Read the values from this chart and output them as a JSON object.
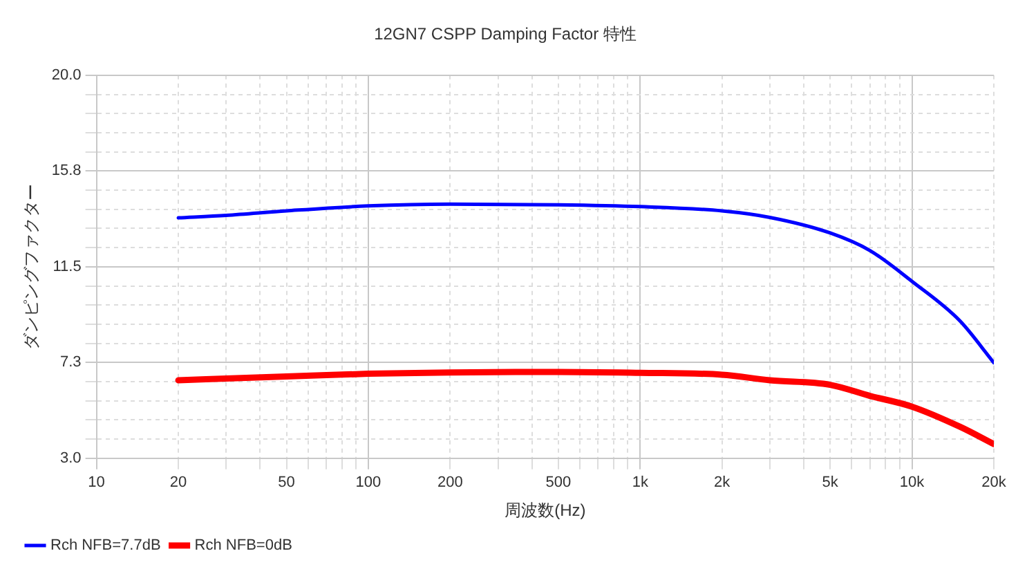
{
  "chart_data": {
    "type": "line",
    "title": "12GN7 CSPP Damping Factor 特性",
    "xlabel": "周波数(Hz)",
    "ylabel": "ダンピングファクター",
    "log": "x",
    "grid": true,
    "legend": "bottom left",
    "marker": "none",
    "line_style": "solid",
    "xlim": [
      10,
      20000
    ],
    "xticks": [
      10,
      20,
      {
        "value": 30,
        "label": null
      },
      {
        "value": 40,
        "label": null
      },
      50,
      {
        "value": 60,
        "label": null
      },
      {
        "value": 70,
        "label": null
      },
      {
        "value": 80,
        "label": null
      },
      {
        "value": 90,
        "label": null
      },
      100,
      200,
      {
        "value": 300,
        "label": null
      },
      {
        "value": 400,
        "label": null
      },
      500,
      {
        "value": 600,
        "label": null
      },
      {
        "value": 700,
        "label": null
      },
      {
        "value": 800,
        "label": null
      },
      {
        "value": 900,
        "label": null
      },
      {
        "value": 1000,
        "label": "1k"
      },
      {
        "value": 2000,
        "label": "2k"
      },
      {
        "value": 3000,
        "label": null
      },
      {
        "value": 4000,
        "label": null
      },
      {
        "value": 5000,
        "label": "5k"
      },
      {
        "value": 6000,
        "label": null
      },
      {
        "value": 7000,
        "label": null
      },
      {
        "value": 8000,
        "label": null
      },
      {
        "value": 9000,
        "label": null
      },
      {
        "value": 10000,
        "label": "10k"
      },
      {
        "value": 20000,
        "label": "20k"
      }
    ],
    "ylim": [
      3.0,
      20.0
    ],
    "yticks": [
      {
        "value": 3.0,
        "label": "3.0"
      },
      {
        "value": 3.85,
        "label": null
      },
      {
        "value": 4.7,
        "label": null
      },
      {
        "value": 5.55,
        "label": null
      },
      {
        "value": 6.4,
        "label": null
      },
      {
        "value": 7.25,
        "label": "7.3"
      },
      {
        "value": 8.1,
        "label": null
      },
      {
        "value": 8.95,
        "label": null
      },
      {
        "value": 9.8,
        "label": null
      },
      {
        "value": 10.65,
        "label": null
      },
      {
        "value": 11.5,
        "label": "11.5"
      },
      {
        "value": 12.35,
        "label": null
      },
      {
        "value": 13.2,
        "label": null
      },
      {
        "value": 14.05,
        "label": null
      },
      {
        "value": 14.9,
        "label": null
      },
      {
        "value": 15.75,
        "label": "15.8"
      },
      {
        "value": 16.6,
        "label": null
      },
      {
        "value": 17.45,
        "label": null
      },
      {
        "value": 18.3,
        "label": null
      },
      {
        "value": 19.15,
        "label": null
      },
      {
        "value": 20.0,
        "label": "20.0"
      }
    ],
    "series": [
      {
        "name": "Rch NFB=7.7dB",
        "color": "#0000ff",
        "x": [
          20,
          30,
          50,
          100,
          200,
          500,
          1000,
          2000,
          3000,
          5000,
          7000,
          10000,
          15000,
          20000
        ],
        "values": [
          13.67,
          13.78,
          13.98,
          14.2,
          14.28,
          14.25,
          14.17,
          13.98,
          13.69,
          13.0,
          12.22,
          10.85,
          9.1,
          7.24
        ]
      },
      {
        "name": "Rch NFB=0dB",
        "color": "#ff0000",
        "x": [
          20,
          50,
          100,
          200,
          500,
          1000,
          2000,
          3000,
          5000,
          7000,
          10000,
          15000,
          20000
        ],
        "values": [
          6.46,
          6.63,
          6.75,
          6.81,
          6.83,
          6.79,
          6.71,
          6.46,
          6.26,
          5.77,
          5.29,
          4.4,
          3.63
        ]
      }
    ]
  }
}
